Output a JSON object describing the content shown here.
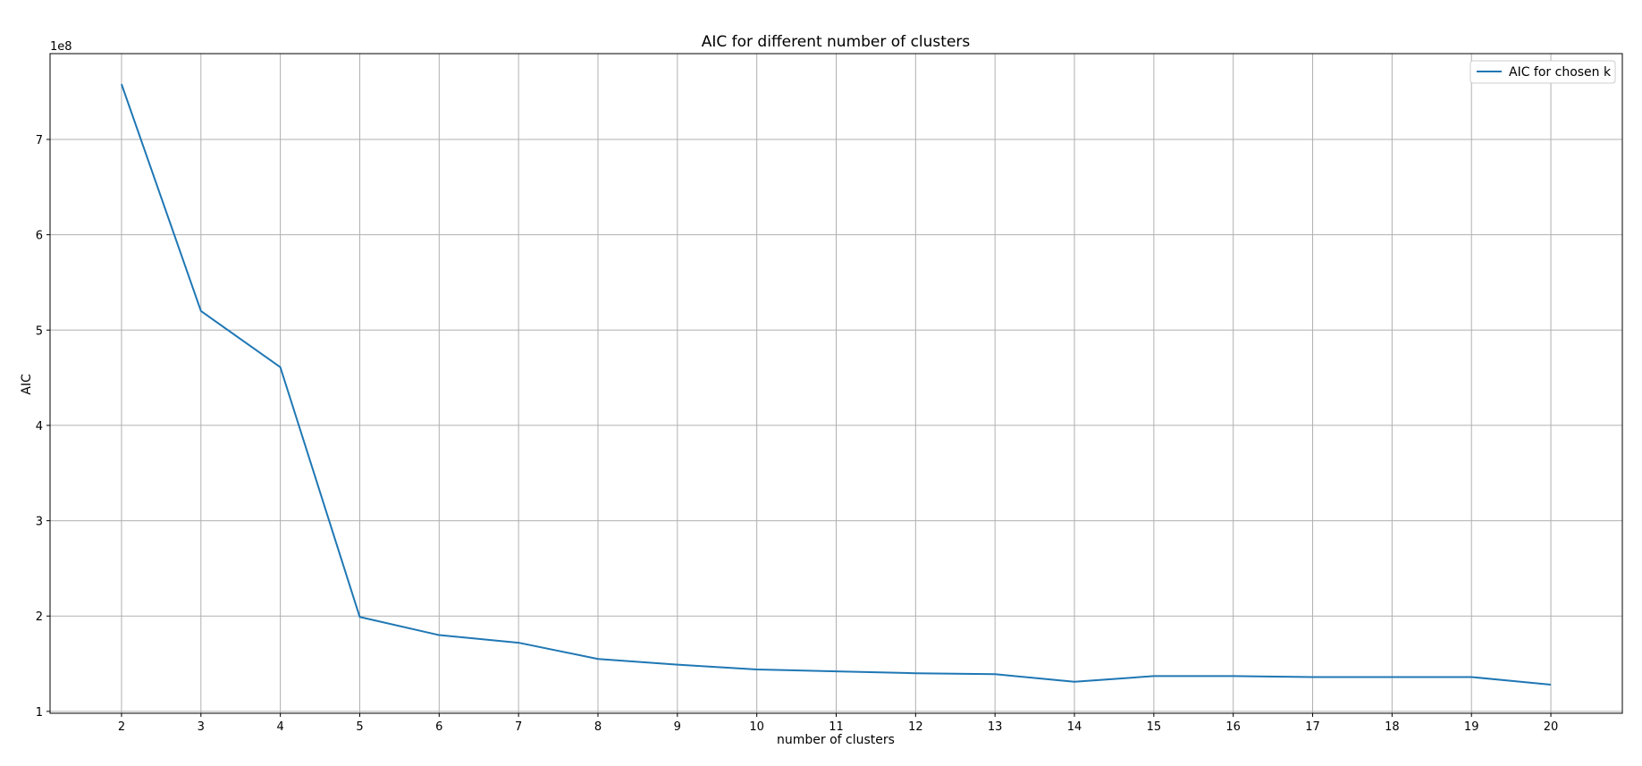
{
  "chart_data": {
    "type": "line",
    "title": "AIC for different number of clusters",
    "xlabel": "number of clusters",
    "ylabel": "AIC",
    "y_offset_label": "1e8",
    "x_ticks": [
      2,
      3,
      4,
      5,
      6,
      7,
      8,
      9,
      10,
      11,
      12,
      13,
      14,
      15,
      16,
      17,
      18,
      19,
      20
    ],
    "y_ticks": [
      1,
      2,
      3,
      4,
      5,
      6,
      7
    ],
    "xlim": [
      1.1,
      20.9
    ],
    "ylim": [
      0.98,
      7.9
    ],
    "grid": true,
    "legend_position": "top-right",
    "series": [
      {
        "name": "AIC for chosen k",
        "color": "#1f77b4",
        "x": [
          2,
          3,
          4,
          5,
          6,
          7,
          8,
          9,
          10,
          11,
          12,
          13,
          14,
          15,
          16,
          17,
          18,
          19,
          20
        ],
        "y": [
          7.58,
          5.2,
          4.61,
          1.99,
          1.8,
          1.72,
          1.55,
          1.49,
          1.44,
          1.42,
          1.4,
          1.39,
          1.31,
          1.37,
          1.37,
          1.36,
          1.36,
          1.36,
          1.28
        ]
      }
    ]
  }
}
